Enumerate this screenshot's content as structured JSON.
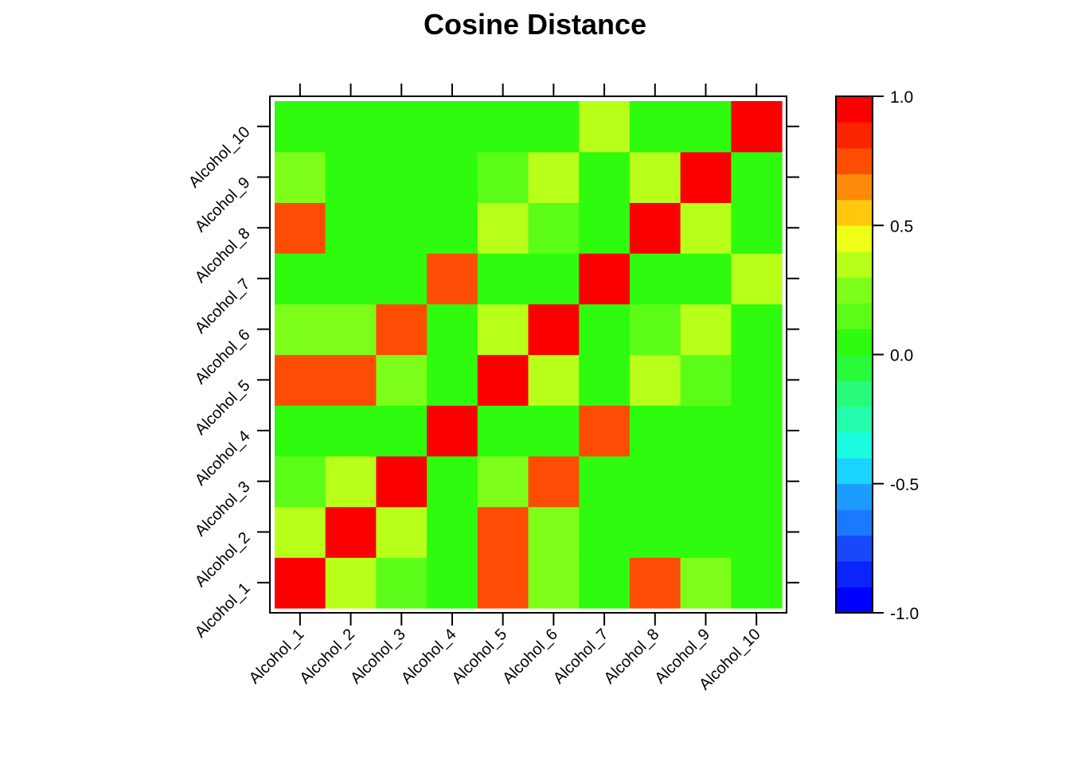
{
  "chart_data": {
    "type": "heatmap",
    "title": "Cosine Distance",
    "xlabel": "",
    "ylabel": "",
    "x_categories": [
      "Alcohol_1",
      "Alcohol_2",
      "Alcohol_3",
      "Alcohol_4",
      "Alcohol_5",
      "Alcohol_6",
      "Alcohol_7",
      "Alcohol_8",
      "Alcohol_9",
      "Alcohol_10"
    ],
    "y_categories": [
      "Alcohol_1",
      "Alcohol_2",
      "Alcohol_3",
      "Alcohol_4",
      "Alcohol_5",
      "Alcohol_6",
      "Alcohol_7",
      "Alcohol_8",
      "Alcohol_9",
      "Alcohol_10"
    ],
    "values": [
      [
        1.0,
        0.35,
        0.1,
        0.0,
        0.7,
        0.25,
        0.0,
        0.7,
        0.25,
        0.0
      ],
      [
        0.35,
        1.0,
        0.35,
        0.0,
        0.7,
        0.25,
        0.0,
        0.0,
        0.0,
        0.0
      ],
      [
        0.1,
        0.35,
        1.0,
        0.0,
        0.25,
        0.7,
        0.0,
        0.0,
        0.0,
        0.0
      ],
      [
        0.0,
        0.0,
        0.0,
        1.0,
        0.0,
        0.0,
        0.7,
        0.0,
        0.0,
        0.0
      ],
      [
        0.7,
        0.7,
        0.25,
        0.0,
        1.0,
        0.35,
        0.0,
        0.35,
        0.1,
        0.0
      ],
      [
        0.25,
        0.25,
        0.7,
        0.0,
        0.35,
        1.0,
        0.0,
        0.1,
        0.35,
        0.0
      ],
      [
        0.0,
        0.0,
        0.0,
        0.7,
        0.0,
        0.0,
        1.0,
        0.0,
        0.0,
        0.35
      ],
      [
        0.7,
        0.0,
        0.0,
        0.0,
        0.35,
        0.1,
        0.0,
        1.0,
        0.35,
        0.0
      ],
      [
        0.25,
        0.0,
        0.0,
        0.0,
        0.1,
        0.35,
        0.0,
        0.35,
        1.0,
        0.0
      ],
      [
        0.0,
        0.0,
        0.0,
        0.0,
        0.0,
        0.0,
        0.35,
        0.0,
        0.0,
        1.0
      ]
    ],
    "colorbar": {
      "range": [
        -1.0,
        1.0
      ],
      "tick_values": [
        -1.0,
        -0.5,
        0.0,
        0.5,
        1.0
      ],
      "tick_labels": [
        "-1.0",
        "-0.5",
        "0.0",
        "0.5",
        "1.0"
      ],
      "bands": [
        "#0000ff",
        "#0b24fb",
        "#1749fb",
        "#1b79ff",
        "#1c9cfe",
        "#1ad3ff",
        "#1cfce1",
        "#23fcac",
        "#28fa7a",
        "#29fb3b",
        "#2efb0e",
        "#5bfd18",
        "#7dfe19",
        "#b8ff1a",
        "#effe17",
        "#ffc80d",
        "#fe8a0a",
        "#fd4d05",
        "#fc2300",
        "#fb0000"
      ]
    },
    "grid": false,
    "legend": "colorbar-right"
  }
}
